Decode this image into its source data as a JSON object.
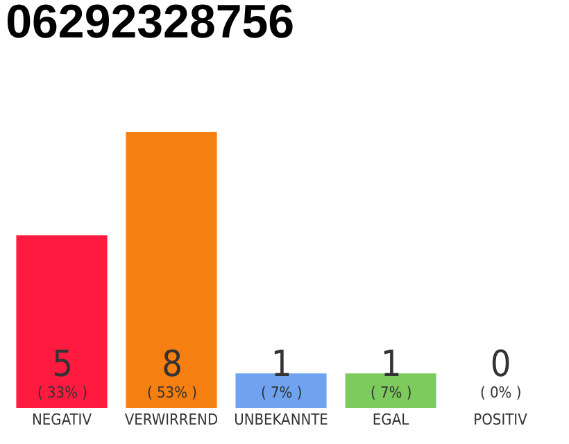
{
  "chart_data": {
    "type": "bar",
    "title": "06292328756",
    "categories": [
      "NEGATIV",
      "VERWIRREND",
      "UNBEKANNTE",
      "EGAL",
      "POSITIV"
    ],
    "values": [
      5,
      8,
      1,
      1,
      0
    ],
    "colors": [
      "#ff1a40",
      "#f57f10",
      "#6fa3f0",
      "#7ccb5c",
      "#7ccb5c"
    ],
    "value_labels": [
      "5\n( 33% )",
      "8\n( 53% )",
      "1\n( 7% )",
      "1\n( 7% )",
      "0\n( 0% )"
    ],
    "grid": false,
    "legend": false
  }
}
